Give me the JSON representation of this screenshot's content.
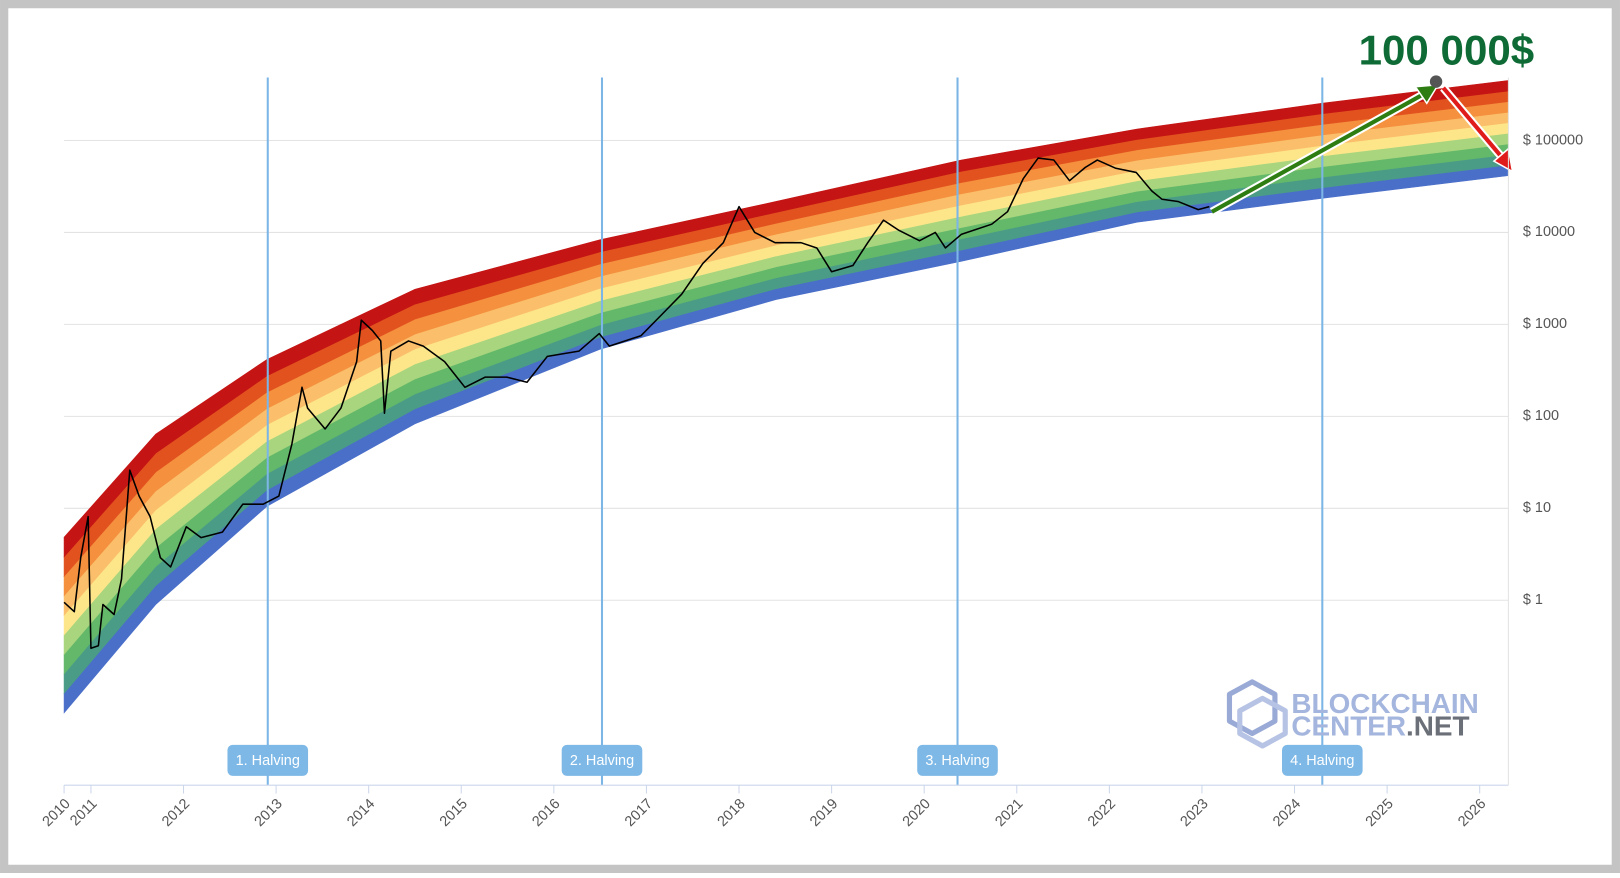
{
  "chart_data": {
    "type": "line",
    "ylog": true,
    "grid": true,
    "xlim": [
      2010.71,
      2026.31
    ],
    "ylim": [
      0.00975,
      484000
    ],
    "xticks": [
      {
        "value": 2010.71,
        "label": "2010"
      },
      2011,
      2012,
      2013,
      2014,
      2015,
      2016,
      2017,
      2018,
      2019,
      2020,
      2021,
      2022,
      2023,
      2024,
      2025,
      2026
    ],
    "yticks": [
      {
        "value": 1,
        "label": "$ 1"
      },
      {
        "value": 10,
        "label": "$ 10"
      },
      {
        "value": 100,
        "label": "$ 100"
      },
      {
        "value": 1000,
        "label": "$ 1000"
      },
      {
        "value": 10000,
        "label": "$ 10000"
      },
      {
        "value": 100000,
        "label": "$ 100000"
      }
    ],
    "rainbow": {
      "x": [
        2010.71,
        2011.7,
        2012.9,
        2014.5,
        2016.5,
        2018.4,
        2020.4,
        2022.3,
        2024.3,
        2026.31
      ],
      "top": [
        4.85,
        64,
        415,
        2410,
        8340,
        21700,
        61200,
        133000,
        254000,
        449000
      ],
      "bottom": [
        0.0596,
        0.9,
        10.5,
        83,
        537,
        1860,
        4840,
        12900,
        23500,
        41500
      ],
      "colors": [
        "#4a6fc9",
        "#4a9c86",
        "#63b86a",
        "#a8d57d",
        "#fde68a",
        "#fbbf6b",
        "#f4903e",
        "#e2521f",
        "#c41414"
      ]
    },
    "x": [
      2010.71,
      2010.82,
      2010.89,
      2010.97,
      2011.0,
      2011.08,
      2011.13,
      2011.25,
      2011.33,
      2011.42,
      2011.52,
      2011.64,
      2011.75,
      2011.86,
      2012.03,
      2012.19,
      2012.42,
      2012.64,
      2012.86,
      2013.03,
      2013.17,
      2013.28,
      2013.34,
      2013.53,
      2013.7,
      2013.87,
      2013.92,
      2014.04,
      2014.13,
      2014.17,
      2014.24,
      2014.43,
      2014.59,
      2014.82,
      2015.04,
      2015.26,
      2015.49,
      2015.71,
      2015.93,
      2016.27,
      2016.49,
      2016.6,
      2016.94,
      2017.16,
      2017.38,
      2017.61,
      2017.83,
      2018.0,
      2018.17,
      2018.39,
      2018.67,
      2018.84,
      2019.0,
      2019.23,
      2019.39,
      2019.56,
      2019.73,
      2019.95,
      2020.12,
      2020.23,
      2020.4,
      2020.73,
      2020.9,
      2021.07,
      2021.23,
      2021.4,
      2021.57,
      2021.74,
      2021.87,
      2022.07,
      2022.29,
      2022.46,
      2022.57,
      2022.74,
      2022.96,
      2023.08
    ],
    "values": [
      0.95,
      0.75,
      2.9,
      8.1,
      0.3,
      0.32,
      0.9,
      0.7,
      1.7,
      26,
      13.6,
      8.1,
      2.9,
      2.3,
      6.3,
      4.8,
      5.5,
      11.1,
      11.1,
      13.6,
      50,
      207,
      123,
      73,
      123,
      394,
      1110,
      857,
      661,
      108,
      511,
      661,
      581,
      394,
      207,
      267,
      267,
      235,
      449,
      511,
      793,
      581,
      752,
      1260,
      2120,
      4600,
      7730,
      19100,
      10000,
      7730,
      7730,
      6780,
      3740,
      4370,
      7730,
      13600,
      10500,
      8130,
      10000,
      6780,
      9510,
      12300,
      16800,
      38400,
      64400,
      61200,
      36500,
      51000,
      61200,
      49800,
      44900,
      28100,
      22900,
      21700,
      17700,
      19100
    ],
    "color": "#000000",
    "halvings": [
      {
        "x": 2012.91,
        "label": "1. Halving"
      },
      {
        "x": 2016.52,
        "label": "2. Halving"
      },
      {
        "x": 2020.36,
        "label": "3. Halving"
      },
      {
        "x": 2024.3,
        "label": "4. Halving"
      }
    ],
    "annotation": "100 000$",
    "watermark": [
      "BLOCKCHAIN",
      "CENTER",
      ".NET"
    ]
  }
}
